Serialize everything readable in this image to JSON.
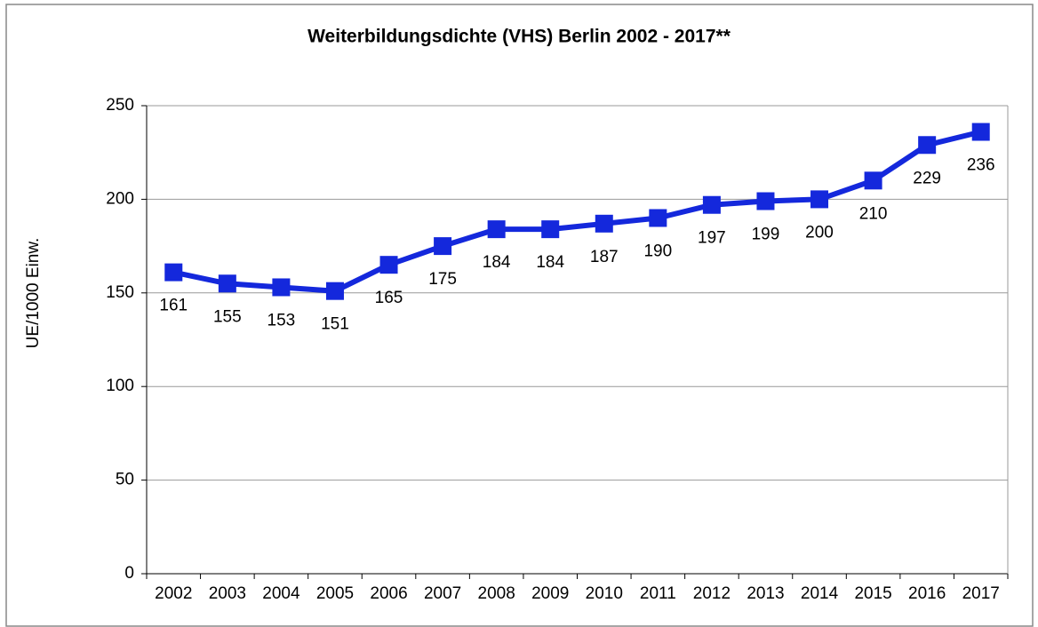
{
  "chart_data": {
    "type": "line",
    "title": "Weiterbildungsdichte (VHS) Berlin 2002 - 2017**",
    "y_label": "UE/1000 Einw.",
    "categories": [
      "2002",
      "2003",
      "2004",
      "2005",
      "2006",
      "2007",
      "2008",
      "2009",
      "2010",
      "2011",
      "2012",
      "2013",
      "2014",
      "2015",
      "2016",
      "2017"
    ],
    "series": [
      {
        "name": "Weiterbildungsdichte",
        "color": "#1428dc",
        "values": [
          161,
          155,
          153,
          151,
          165,
          175,
          184,
          184,
          187,
          190,
          197,
          199,
          200,
          210,
          229,
          236
        ]
      }
    ],
    "ylim": [
      0,
      250
    ],
    "yticks": [
      0,
      50,
      100,
      150,
      200,
      250
    ],
    "grid": true
  }
}
